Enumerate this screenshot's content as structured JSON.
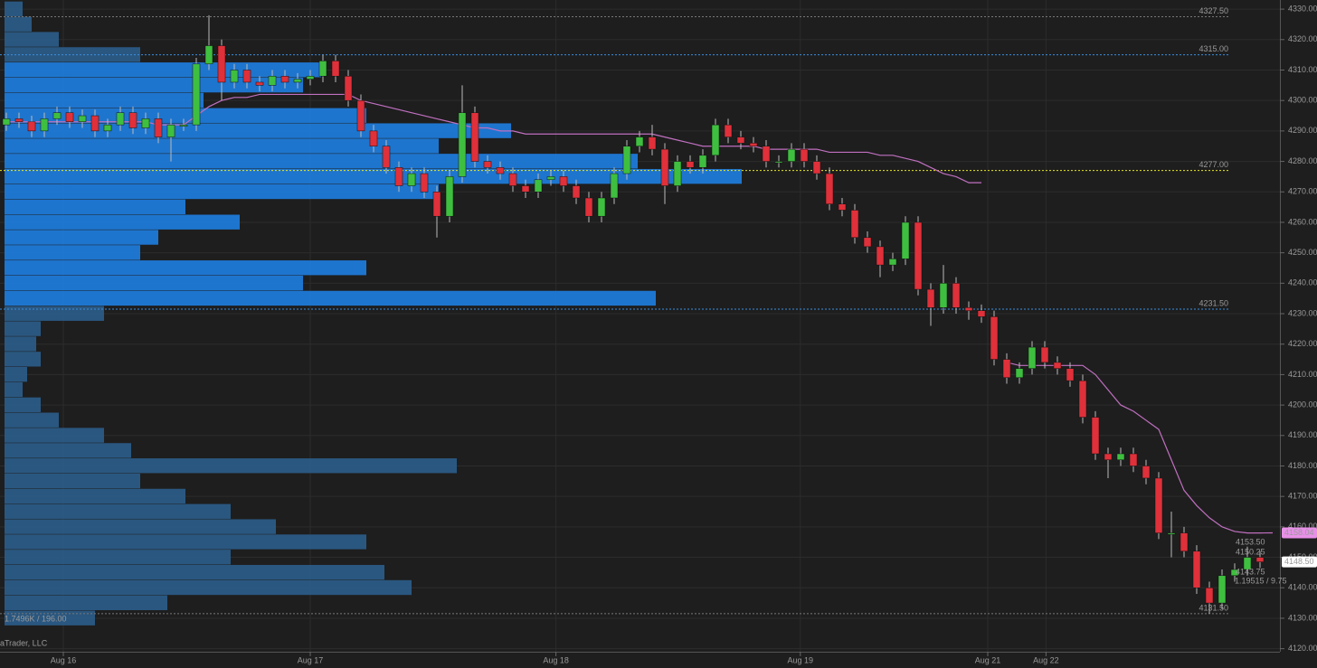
{
  "chart_data": {
    "type": "candlestick",
    "xlim": [
      -0.5,
      100.5
    ],
    "ylim": [
      4119,
      4333
    ],
    "xticks": [
      {
        "value": 4.5,
        "label": "Aug 16"
      },
      {
        "value": 24,
        "label": "Aug 17"
      },
      {
        "value": 43.4,
        "label": "Aug 18"
      },
      {
        "value": 62.7,
        "label": "Aug 19"
      },
      {
        "value": 77.5,
        "label": "Aug 21"
      },
      {
        "value": 82.1,
        "label": "Aug 22"
      }
    ],
    "yticks": [
      {
        "value": 4120,
        "label": "4120.00"
      },
      {
        "value": 4130,
        "label": "4130.00"
      },
      {
        "value": 4140,
        "label": "4140.00"
      },
      {
        "value": 4150,
        "label": "4150.00"
      },
      {
        "value": 4160,
        "label": "4160.00"
      },
      {
        "value": 4170,
        "label": "4170.00"
      },
      {
        "value": 4180,
        "label": "4180.00"
      },
      {
        "value": 4190,
        "label": "4190.00"
      },
      {
        "value": 4200,
        "label": "4200.00"
      },
      {
        "value": 4210,
        "label": "4210.00"
      },
      {
        "value": 4220,
        "label": "4220.00"
      },
      {
        "value": 4230,
        "label": "4230.00"
      },
      {
        "value": 4240,
        "label": "4240.00"
      },
      {
        "value": 4250,
        "label": "4250.00"
      },
      {
        "value": 4260,
        "label": "4260.00"
      },
      {
        "value": 4270,
        "label": "4270.00"
      },
      {
        "value": 4280,
        "label": "4280.00"
      },
      {
        "value": 4290,
        "label": "4290.00"
      },
      {
        "value": 4300,
        "label": "4300.00"
      },
      {
        "value": 4310,
        "label": "4310.00"
      },
      {
        "value": 4320,
        "label": "4320.00"
      },
      {
        "value": 4330,
        "label": "4330.00"
      }
    ],
    "grid": true,
    "up_color": "#3fbf3f",
    "down_color": "#e0303a",
    "open": [
      4292,
      4294,
      4293,
      4290,
      4294,
      4296,
      4293,
      4295,
      4290,
      4292,
      4296,
      4291,
      4294,
      4288,
      4292,
      4292,
      4312,
      4318,
      4306,
      4310,
      4306,
      4305,
      4308,
      4306,
      4307,
      4308,
      4313,
      4308,
      4300,
      4290,
      4285,
      4278,
      4272,
      4276,
      4270,
      4262,
      4275,
      4296,
      4280,
      4278,
      4276,
      4272,
      4270,
      4274,
      4275,
      4272,
      4268,
      4262,
      4268,
      4276,
      4285,
      4288,
      4284,
      4272,
      4280,
      4278,
      4282,
      4292,
      4288,
      4286,
      4285,
      4280,
      4280,
      4284,
      4280,
      4276,
      4266,
      4264,
      4255,
      4252,
      4246,
      4248,
      4260,
      4238,
      4232,
      4240,
      4232,
      4231,
      4229,
      4215,
      4209,
      4212,
      4219,
      4214,
      4212,
      4208,
      4196,
      4184,
      4182,
      4184,
      4180,
      4176,
      4158,
      4158,
      4152,
      4140,
      4135,
      4144,
      4146,
      4150
    ],
    "high": [
      4296,
      4296,
      4295,
      4296,
      4298,
      4298,
      4297,
      4297,
      4294,
      4298,
      4298,
      4296,
      4296,
      4294,
      4294,
      4314,
      4328,
      4320,
      4312,
      4312,
      4308,
      4310,
      4310,
      4309,
      4310,
      4315,
      4315,
      4310,
      4302,
      4292,
      4287,
      4280,
      4278,
      4278,
      4272,
      4277,
      4305,
      4298,
      4282,
      4280,
      4278,
      4274,
      4276,
      4277,
      4277,
      4274,
      4270,
      4270,
      4278,
      4287,
      4290,
      4292,
      4286,
      4282,
      4282,
      4284,
      4294,
      4294,
      4290,
      4288,
      4287,
      4282,
      4286,
      4286,
      4282,
      4278,
      4268,
      4266,
      4257,
      4254,
      4250,
      4262,
      4262,
      4240,
      4246,
      4242,
      4234,
      4233,
      4231,
      4217,
      4214,
      4221,
      4221,
      4216,
      4214,
      4210,
      4198,
      4186,
      4186,
      4186,
      4182,
      4178,
      4165,
      4160,
      4154,
      4142,
      4146,
      4148,
      4153.5,
      4152
    ],
    "low": [
      4290,
      4291,
      4288,
      4288,
      4292,
      4291,
      4291,
      4288,
      4288,
      4290,
      4289,
      4289,
      4286,
      4280,
      4290,
      4290,
      4310,
      4300,
      4304,
      4304,
      4303,
      4303,
      4304,
      4304,
      4305,
      4306,
      4306,
      4298,
      4288,
      4283,
      4276,
      4270,
      4270,
      4268,
      4255,
      4260,
      4273,
      4278,
      4276,
      4274,
      4270,
      4268,
      4268,
      4272,
      4270,
      4266,
      4260,
      4260,
      4266,
      4274,
      4283,
      4282,
      4266,
      4270,
      4276,
      4276,
      4280,
      4286,
      4284,
      4283,
      4278,
      4278,
      4278,
      4278,
      4274,
      4264,
      4262,
      4253,
      4250,
      4242,
      4244,
      4246,
      4236,
      4226,
      4230,
      4230,
      4228,
      4227,
      4213,
      4207,
      4207,
      4210,
      4212,
      4210,
      4206,
      4194,
      4182,
      4176,
      4180,
      4178,
      4174,
      4156,
      4150,
      4150,
      4138,
      4131.5,
      4133,
      4142,
      4144,
      4146.5
    ],
    "close": [
      4294,
      4293,
      4290,
      4294,
      4296,
      4293,
      4295,
      4290,
      4292,
      4296,
      4291,
      4294,
      4288,
      4292,
      4292,
      4312,
      4318,
      4306,
      4310,
      4306,
      4305,
      4308,
      4306,
      4307,
      4308,
      4313,
      4308,
      4300,
      4290,
      4285,
      4278,
      4272,
      4276,
      4270,
      4262,
      4275,
      4296,
      4280,
      4278,
      4276,
      4272,
      4270,
      4274,
      4275,
      4272,
      4268,
      4262,
      4268,
      4276,
      4285,
      4288,
      4284,
      4272,
      4280,
      4278,
      4282,
      4292,
      4288,
      4286,
      4285,
      4280,
      4280,
      4284,
      4280,
      4276,
      4266,
      4264,
      4255,
      4252,
      4246,
      4248,
      4260,
      4238,
      4232,
      4240,
      4232,
      4231,
      4229,
      4215,
      4209,
      4212,
      4219,
      4214,
      4212,
      4208,
      4196,
      4184,
      4182,
      4184,
      4180,
      4176,
      4158,
      4158,
      4152,
      4140,
      4135,
      4144,
      4146,
      4150,
      4148.5
    ],
    "vwap": {
      "color": "#c070c0",
      "values": [
        4293,
        4293,
        4293,
        4293,
        4293,
        4293,
        4293,
        4293,
        4293,
        4293,
        4293,
        4293,
        4292,
        4292,
        4292,
        4295,
        4298,
        4300,
        4301,
        4301,
        4302,
        4302,
        4302,
        4302,
        4302,
        4302,
        4302,
        4302,
        4300,
        4299,
        4298,
        4297,
        4296,
        4295,
        4294,
        4293,
        4292,
        4291,
        4291,
        4290,
        4290,
        4289,
        4289,
        4289,
        4289,
        4289,
        4289,
        4289,
        4289,
        4289,
        4289,
        4289,
        4288,
        4287,
        4286,
        4285,
        4285,
        4285,
        4285,
        4285,
        4284,
        4284,
        4284,
        4284,
        4284,
        4283,
        4283,
        4283,
        4283,
        4282,
        4282,
        4281,
        4280,
        4278,
        4276,
        4275,
        4273,
        4273,
        null,
        4214,
        4213,
        4213,
        4213,
        4213,
        4213,
        4213,
        4210,
        4205,
        4200,
        4198,
        4195,
        4192,
        4182,
        4172,
        4167,
        4163,
        4160,
        4158.5,
        4158,
        4158,
        4158.04
      ]
    },
    "profile": [
      {
        "color": "#2b5b86",
        "prices": [
          4330,
          4325,
          4320,
          4315
        ],
        "volumes": [
          20,
          30,
          60,
          150
        ]
      },
      {
        "color": "#1f7ad8",
        "prices": [
          4310,
          4305,
          4300,
          4295,
          4290,
          4285,
          4280,
          4275,
          4270,
          4265,
          4260,
          4255,
          4250,
          4245,
          4240,
          4235
        ],
        "volumes": [
          350,
          330,
          220,
          400,
          560,
          480,
          700,
          815,
          480,
          200,
          260,
          170,
          150,
          400,
          330,
          720
        ]
      },
      {
        "color": "#2b5b86",
        "prices": [
          4230,
          4225,
          4220,
          4215,
          4210,
          4205,
          4200,
          4195,
          4190,
          4185,
          4180,
          4175,
          4170,
          4165,
          4160,
          4155,
          4150,
          4145,
          4140,
          4135,
          4130
        ],
        "volumes": [
          110,
          40,
          35,
          40,
          25,
          20,
          40,
          60,
          110,
          140,
          500,
          150,
          200,
          250,
          300,
          400,
          250,
          420,
          450,
          180,
          100
        ]
      }
    ],
    "levels": [
      {
        "value": 4327.5,
        "label": "4327.50",
        "color": "#777777"
      },
      {
        "value": 4315,
        "label": "4315.00",
        "color": "#3a8fe0"
      },
      {
        "value": 4277,
        "label": "4277.00",
        "color": "#e8e820"
      },
      {
        "value": 4231.5,
        "label": "4231.50",
        "color": "#3a8fe0"
      },
      {
        "value": 4131.5,
        "label": "4131.50",
        "color": "#777777"
      }
    ],
    "price_labels": [
      {
        "value": 4158.04,
        "label": "4158.04",
        "color": "#e890e8"
      },
      {
        "value": 4148.5,
        "label": "4148.50",
        "color": "#ffffff"
      }
    ],
    "annotations": [
      "1.7496K / 196.00",
      "1.19515 / 9.75",
      "aTrader, LLC",
      "4153.50",
      "4150.25",
      "4143.75"
    ]
  }
}
